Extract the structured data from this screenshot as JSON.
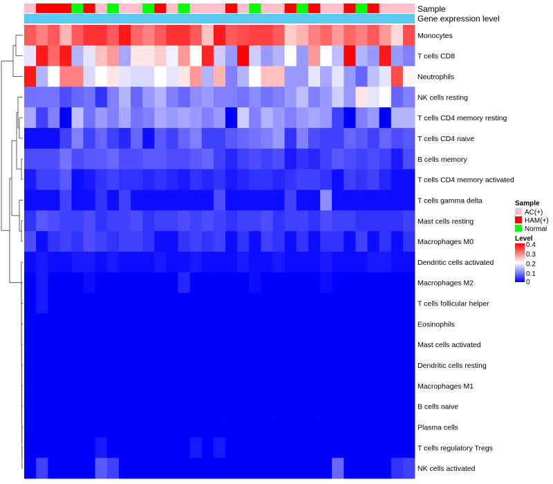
{
  "chart_data": {
    "type": "heatmap",
    "title": "",
    "annotation_tracks": [
      "Sample",
      "Gene expression level"
    ],
    "sample_groups": [
      "AC(+)",
      "HAM(+)",
      "HAM(+)",
      "HAM(+)",
      "Normal",
      "HAM(+)",
      "AC(+)",
      "Normal",
      "AC(+)",
      "AC(+)",
      "Normal",
      "HAM(+)",
      "AC(+)",
      "Normal",
      "AC(+)",
      "AC(+)",
      "AC(+)",
      "HAM(+)",
      "AC(+)",
      "Normal",
      "AC(+)",
      "AC(+)",
      "HAM(+)",
      "Normal",
      "HAM(+)",
      "AC(+)",
      "AC(+)",
      "HAM(+)",
      "Normal",
      "HAM(+)",
      "AC(+)",
      "AC(+)",
      "AC(+)"
    ],
    "rows": [
      "Monocytes",
      "T cells CD8",
      "Neutrophils",
      "NK cells resting",
      "T cells CD4 memory resting",
      "T cells CD4 naive",
      "B cells memory",
      "T cells CD4 memory activated",
      "T cells gamma delta",
      "Mast cells resting",
      "Macrophages M0",
      "Dendritic cells activated",
      "Macrophages M2",
      "T cells follicular helper",
      "Eosinophils",
      "Mast cells activated",
      "Dendritic cells resting",
      "Macrophages M1",
      "B cells naive",
      "Plasma cells",
      "T cells regulatory  Tregs",
      "NK cells activated"
    ],
    "values": [
      [
        0.33,
        0.3,
        0.33,
        0.26,
        0.33,
        0.36,
        0.36,
        0.33,
        0.38,
        0.32,
        0.3,
        0.33,
        0.36,
        0.36,
        0.33,
        0.25,
        0.38,
        0.33,
        0.34,
        0.35,
        0.35,
        0.33,
        0.24,
        0.26,
        0.3,
        0.32,
        0.28,
        0.32,
        0.3,
        0.33,
        0.28,
        0.23,
        0.34
      ],
      [
        0.18,
        0.38,
        0.32,
        0.38,
        0.14,
        0.18,
        0.25,
        0.28,
        0.13,
        0.22,
        0.22,
        0.24,
        0.19,
        0.28,
        0.2,
        0.37,
        0.16,
        0.12,
        0.4,
        0.16,
        0.12,
        0.14,
        0.2,
        0.12,
        0.28,
        0.2,
        0.15,
        0.4,
        0.14,
        0.12,
        0.38,
        0.12,
        0.1
      ],
      [
        0.38,
        0.14,
        0.2,
        0.3,
        0.3,
        0.17,
        0.2,
        0.22,
        0.18,
        0.17,
        0.17,
        0.2,
        0.18,
        0.22,
        0.28,
        0.14,
        0.26,
        0.1,
        0.14,
        0.2,
        0.25,
        0.25,
        0.12,
        0.12,
        0.18,
        0.13,
        0.18,
        0.12,
        0.08,
        0.15,
        0.18,
        0.34,
        0.21
      ],
      [
        0.09,
        0.09,
        0.09,
        0.06,
        0.08,
        0.09,
        0.04,
        0.1,
        0.14,
        0.08,
        0.12,
        0.14,
        0.1,
        0.08,
        0.11,
        0.12,
        0.1,
        0.1,
        0.09,
        0.11,
        0.09,
        0.1,
        0.12,
        0.15,
        0.1,
        0.12,
        0.16,
        0.12,
        0.22,
        0.18,
        0.2,
        0.08,
        0.1
      ],
      [
        0.13,
        0.05,
        0.1,
        0.0,
        0.15,
        0.09,
        0.12,
        0.1,
        0.13,
        0.09,
        0.1,
        0.13,
        0.12,
        0.13,
        0.12,
        0.1,
        0.12,
        0.0,
        0.16,
        0.1,
        0.14,
        0.12,
        0.1,
        0.12,
        0.13,
        0.12,
        0.05,
        0.0,
        0.1,
        0.12,
        0.0,
        0.14,
        0.14
      ],
      [
        0.01,
        0.01,
        0.01,
        0.05,
        0.1,
        0.05,
        0.08,
        0.05,
        0.03,
        0.08,
        0.01,
        0.07,
        0.05,
        0.08,
        0.1,
        0.05,
        0.05,
        0.07,
        0.08,
        0.09,
        0.1,
        0.12,
        0.04,
        0.1,
        0.06,
        0.05,
        0.05,
        0.08,
        0.07,
        0.05,
        0.08,
        0.06,
        0.07
      ],
      [
        0.06,
        0.06,
        0.06,
        0.09,
        0.06,
        0.07,
        0.07,
        0.08,
        0.06,
        0.06,
        0.07,
        0.07,
        0.06,
        0.06,
        0.07,
        0.08,
        0.05,
        0.03,
        0.05,
        0.06,
        0.05,
        0.06,
        0.02,
        0.04,
        0.03,
        0.05,
        0.07,
        0.06,
        0.05,
        0.06,
        0.05,
        0.02,
        0.06
      ],
      [
        0.02,
        0.05,
        0.05,
        0.07,
        0.01,
        0.02,
        0.04,
        0.05,
        0.04,
        0.04,
        0.03,
        0.04,
        0.03,
        0.02,
        0.04,
        0.03,
        0.04,
        0.02,
        0.03,
        0.04,
        0.04,
        0.03,
        0.04,
        0.05,
        0.05,
        0.04,
        0.01,
        0.05,
        0.04,
        0.05,
        0.03,
        0.01,
        0.01
      ],
      [
        0.01,
        0.01,
        0.01,
        0.05,
        0.01,
        0.01,
        0.04,
        0.01,
        0.05,
        0.01,
        0.01,
        0.01,
        0.01,
        0.01,
        0.01,
        0.01,
        0.06,
        0.01,
        0.01,
        0.01,
        0.01,
        0.01,
        0.05,
        0.01,
        0.01,
        0.11,
        0.01,
        0.01,
        0.01,
        0.01,
        0.01,
        0.01,
        0.01
      ],
      [
        0.04,
        0.07,
        0.06,
        0.05,
        0.05,
        0.06,
        0.04,
        0.05,
        0.05,
        0.06,
        0.04,
        0.05,
        0.05,
        0.06,
        0.05,
        0.06,
        0.05,
        0.04,
        0.05,
        0.05,
        0.06,
        0.04,
        0.05,
        0.05,
        0.04,
        0.06,
        0.05,
        0.05,
        0.04,
        0.04,
        0.04,
        0.04,
        0.05
      ],
      [
        0.06,
        0.01,
        0.04,
        0.05,
        0.04,
        0.06,
        0.05,
        0.04,
        0.05,
        0.05,
        0.04,
        0.01,
        0.01,
        0.04,
        0.05,
        0.04,
        0.05,
        0.01,
        0.04,
        0.01,
        0.05,
        0.04,
        0.01,
        0.04,
        0.01,
        0.04,
        0.04,
        0.01,
        0.05,
        0.01,
        0.04,
        0.01,
        0.04
      ],
      [
        0.01,
        0.02,
        0.01,
        0.01,
        0.02,
        0.02,
        0.01,
        0.02,
        0.01,
        0.01,
        0.01,
        0.02,
        0.01,
        0.01,
        0.02,
        0.01,
        0.01,
        0.01,
        0.02,
        0.01,
        0.01,
        0.02,
        0.01,
        0.01,
        0.01,
        0.02,
        0.01,
        0.01,
        0.01,
        0.02,
        0.02,
        0.01,
        0.01
      ],
      [
        0.0,
        0.02,
        0.0,
        0.0,
        0.0,
        0.01,
        0.0,
        0.0,
        0.0,
        0.0,
        0.0,
        0.0,
        0.0,
        0.03,
        0.0,
        0.0,
        0.0,
        0.0,
        0.0,
        0.01,
        0.0,
        0.0,
        0.0,
        0.0,
        0.0,
        0.01,
        0.0,
        0.0,
        0.0,
        0.0,
        0.0,
        0.0,
        0.0
      ],
      [
        0.0,
        0.02,
        0.0,
        0.0,
        0.0,
        0.0,
        0.0,
        0.0,
        0.0,
        0.0,
        0.0,
        0.0,
        0.0,
        0.0,
        0.0,
        0.0,
        0.0,
        0.0,
        0.0,
        0.0,
        0.0,
        0.0,
        0.0,
        0.0,
        0.0,
        0.0,
        0.0,
        0.0,
        0.0,
        0.0,
        0.0,
        0.0,
        0.0
      ],
      [
        0.0,
        0.0,
        0.0,
        0.0,
        0.0,
        0.0,
        0.0,
        0.0,
        0.0,
        0.0,
        0.0,
        0.0,
        0.0,
        0.0,
        0.0,
        0.0,
        0.0,
        0.0,
        0.0,
        0.0,
        0.0,
        0.0,
        0.0,
        0.0,
        0.0,
        0.0,
        0.0,
        0.0,
        0.0,
        0.0,
        0.0,
        0.0,
        0.0
      ],
      [
        0.0,
        0.0,
        0.0,
        0.0,
        0.0,
        0.0,
        0.0,
        0.0,
        0.0,
        0.0,
        0.0,
        0.0,
        0.0,
        0.0,
        0.0,
        0.0,
        0.0,
        0.0,
        0.0,
        0.0,
        0.0,
        0.0,
        0.0,
        0.0,
        0.0,
        0.0,
        0.0,
        0.0,
        0.0,
        0.0,
        0.0,
        0.0,
        0.0
      ],
      [
        0.0,
        0.0,
        0.0,
        0.0,
        0.0,
        0.0,
        0.0,
        0.0,
        0.0,
        0.0,
        0.0,
        0.0,
        0.0,
        0.0,
        0.0,
        0.0,
        0.0,
        0.0,
        0.0,
        0.0,
        0.0,
        0.0,
        0.0,
        0.0,
        0.0,
        0.0,
        0.0,
        0.0,
        0.0,
        0.0,
        0.0,
        0.0,
        0.0
      ],
      [
        0.0,
        0.0,
        0.0,
        0.0,
        0.0,
        0.0,
        0.0,
        0.0,
        0.0,
        0.0,
        0.0,
        0.0,
        0.0,
        0.0,
        0.0,
        0.0,
        0.0,
        0.0,
        0.0,
        0.0,
        0.0,
        0.0,
        0.0,
        0.0,
        0.0,
        0.0,
        0.0,
        0.0,
        0.0,
        0.0,
        0.0,
        0.0,
        0.0
      ],
      [
        0.0,
        0.0,
        0.0,
        0.0,
        0.0,
        0.0,
        0.0,
        0.0,
        0.0,
        0.0,
        0.0,
        0.0,
        0.0,
        0.0,
        0.0,
        0.0,
        0.0,
        0.0,
        0.0,
        0.0,
        0.0,
        0.0,
        0.0,
        0.0,
        0.0,
        0.0,
        0.0,
        0.0,
        0.0,
        0.0,
        0.0,
        0.0,
        0.0
      ],
      [
        0.0,
        0.0,
        0.0,
        0.0,
        0.0,
        0.0,
        0.0,
        0.0,
        0.0,
        0.0,
        0.0,
        0.0,
        0.0,
        0.0,
        0.0,
        0.0,
        0.0,
        0.0,
        0.0,
        0.0,
        0.0,
        0.0,
        0.0,
        0.0,
        0.0,
        0.0,
        0.0,
        0.0,
        0.0,
        0.0,
        0.0,
        0.0,
        0.0
      ],
      [
        0.0,
        0.0,
        0.0,
        0.0,
        0.0,
        0.0,
        0.02,
        0.0,
        0.0,
        0.0,
        0.0,
        0.0,
        0.0,
        0.0,
        0.02,
        0.0,
        0.02,
        0.0,
        0.0,
        0.0,
        0.0,
        0.0,
        0.0,
        0.0,
        0.0,
        0.0,
        0.0,
        0.0,
        0.0,
        0.0,
        0.0,
        0.0,
        0.0
      ],
      [
        0.0,
        0.05,
        0.0,
        0.0,
        0.0,
        0.0,
        0.07,
        0.05,
        0.0,
        0.0,
        0.0,
        0.0,
        0.0,
        0.0,
        0.0,
        0.0,
        0.0,
        0.0,
        0.0,
        0.0,
        0.0,
        0.0,
        0.0,
        0.0,
        0.0,
        0.0,
        0.08,
        0.0,
        0.0,
        0.0,
        0.0,
        0.04,
        0.05
      ]
    ],
    "color_scale": {
      "min": 0,
      "max": 0.4,
      "colors": [
        "#0000ff",
        "#ffffff",
        "#ff0000"
      ]
    },
    "legend": {
      "placement": "right",
      "sample": {
        "title": "Sample",
        "entries": [
          {
            "label": "AC(+)",
            "color": "#ffc0cb"
          },
          {
            "label": "HAM(+)",
            "color": "#ff0000"
          },
          {
            "label": "Normal",
            "color": "#00ff00"
          }
        ]
      },
      "level": {
        "title": "Level",
        "ticks": [
          "0.4",
          "0.3",
          "0.2",
          "0.1",
          "0"
        ]
      }
    },
    "gene_expression_color": "#5bc8f0"
  }
}
